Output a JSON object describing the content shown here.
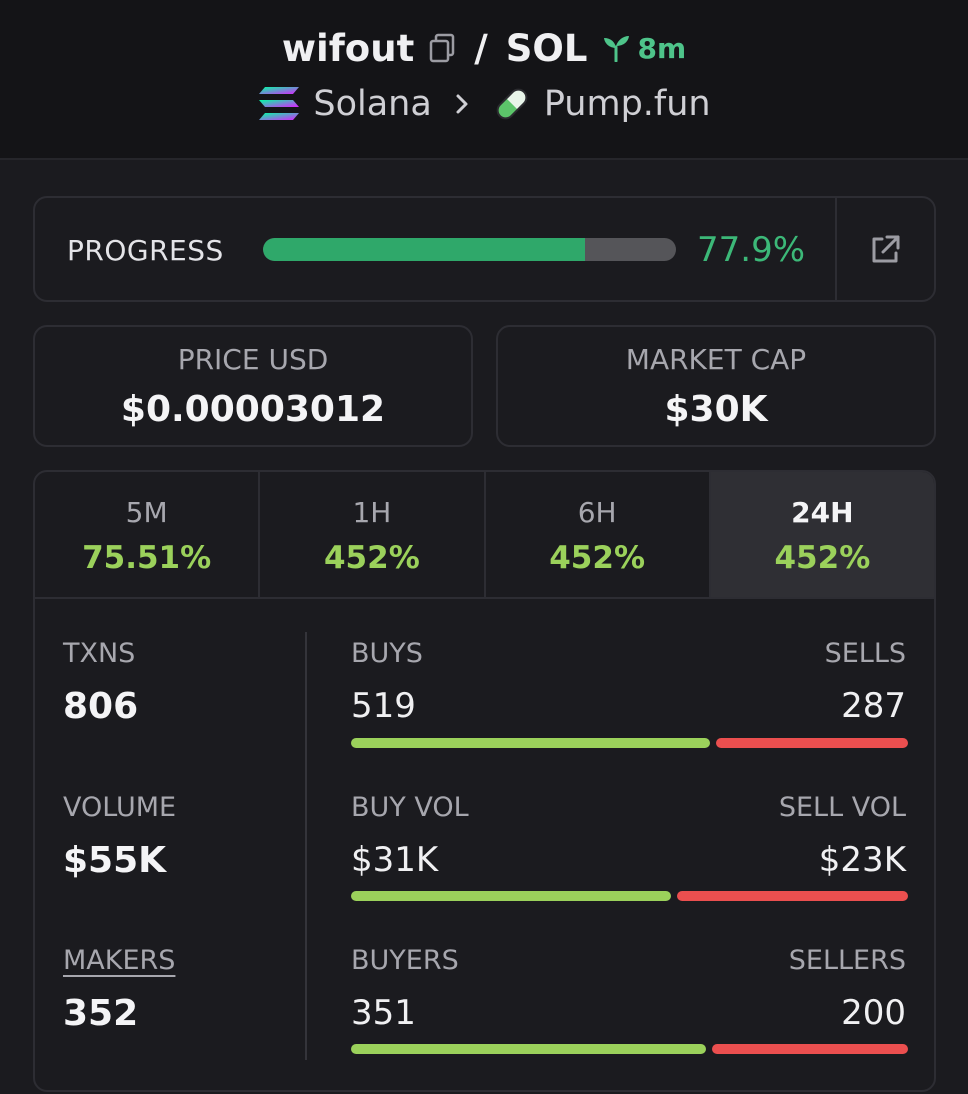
{
  "header": {
    "token_symbol": "wifout",
    "separator": "/",
    "quote_symbol": "SOL",
    "age": "8m",
    "chain": "Solana",
    "dex": "Pump.fun"
  },
  "progress": {
    "label": "PROGRESS",
    "percent_text": "77.9%",
    "value": 0.779
  },
  "stats": {
    "price": {
      "label": "PRICE USD",
      "value": "$0.00003012"
    },
    "market_cap": {
      "label": "MARKET CAP",
      "value": "$30K"
    }
  },
  "tabs": [
    {
      "label": "5M",
      "value": "75.51%"
    },
    {
      "label": "1H",
      "value": "452%"
    },
    {
      "label": "6H",
      "value": "452%"
    },
    {
      "label": "24H",
      "value": "452%",
      "active": true
    }
  ],
  "metrics": {
    "txns": {
      "label": "TXNS",
      "value": "806"
    },
    "volume": {
      "label": "VOLUME",
      "value": "$55K"
    },
    "makers": {
      "label": "MAKERS",
      "value": "352"
    }
  },
  "splits": {
    "txns": {
      "left_label": "BUYS",
      "left_value": "519",
      "right_label": "SELLS",
      "right_value": "287",
      "left_share": 0.644
    },
    "volume": {
      "left_label": "BUY VOL",
      "left_value": "$31K",
      "right_label": "SELL VOL",
      "right_value": "$23K",
      "left_share": 0.574
    },
    "makers": {
      "left_label": "BUYERS",
      "left_value": "351",
      "right_label": "SELLERS",
      "right_value": "200",
      "left_share": 0.637
    }
  },
  "colors": {
    "accent_green": "#3cb878",
    "positive": "#9bd15b",
    "negative": "#eb4f4f",
    "background": "#1b1b1f"
  },
  "icons": [
    "copy-icon",
    "sprout-icon",
    "solana-icon",
    "chevron-right-icon",
    "pill-icon",
    "external-link-icon"
  ]
}
